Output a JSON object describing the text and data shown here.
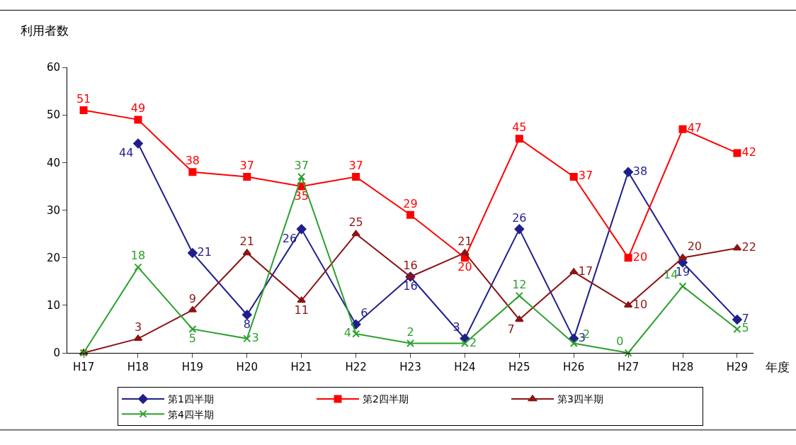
{
  "chart_data": {
    "type": "line",
    "ylabel": "利用者数",
    "xlabel": "年度",
    "categories": [
      "H17",
      "H18",
      "H19",
      "H20",
      "H21",
      "H22",
      "H23",
      "H24",
      "H25",
      "H26",
      "H27",
      "H28",
      "H29"
    ],
    "series": [
      {
        "name": "第1四半期",
        "color": "#1f1f8c",
        "marker": "diamond",
        "values": [
          null,
          44,
          21,
          8,
          26,
          6,
          16,
          3,
          26,
          3,
          38,
          19,
          7
        ],
        "value_labels": [
          null,
          "44",
          "21",
          "8",
          "26",
          "6",
          "16",
          "3",
          "26",
          "3",
          "38",
          "19",
          "7"
        ]
      },
      {
        "name": "第2四半期",
        "color": "#ff0000",
        "marker": "square",
        "values": [
          51,
          49,
          38,
          37,
          35,
          37,
          29,
          20,
          45,
          37,
          20,
          47,
          42
        ],
        "value_labels": [
          "51",
          "49",
          "38",
          "37",
          "35",
          "37",
          "29",
          "20",
          "45",
          "37",
          "20",
          "47",
          "42"
        ]
      },
      {
        "name": "第3四半期",
        "color": "#8b1414",
        "marker": "triangle",
        "values": [
          0,
          3,
          9,
          21,
          11,
          25,
          16,
          21,
          7,
          17,
          10,
          20,
          22
        ],
        "value_labels": [
          null,
          "3",
          "9",
          "21",
          "11",
          "25",
          "16",
          "21",
          "7",
          "17",
          "10",
          "20",
          "22"
        ]
      },
      {
        "name": "第4四半期",
        "color": "#2ca02c",
        "marker": "cross",
        "values": [
          0,
          18,
          5,
          3,
          37,
          4,
          2,
          2,
          12,
          2,
          0,
          14,
          5
        ],
        "value_labels": [
          null,
          "18",
          "5",
          "3",
          "37",
          "4",
          "2",
          "2",
          "12",
          "2",
          "0",
          "14",
          "5"
        ]
      }
    ],
    "ylim": [
      0,
      60
    ],
    "yticks": [
      0,
      10,
      20,
      30,
      40,
      50,
      60
    ],
    "grid": false,
    "legend": "bottom",
    "line_style": "solid"
  }
}
